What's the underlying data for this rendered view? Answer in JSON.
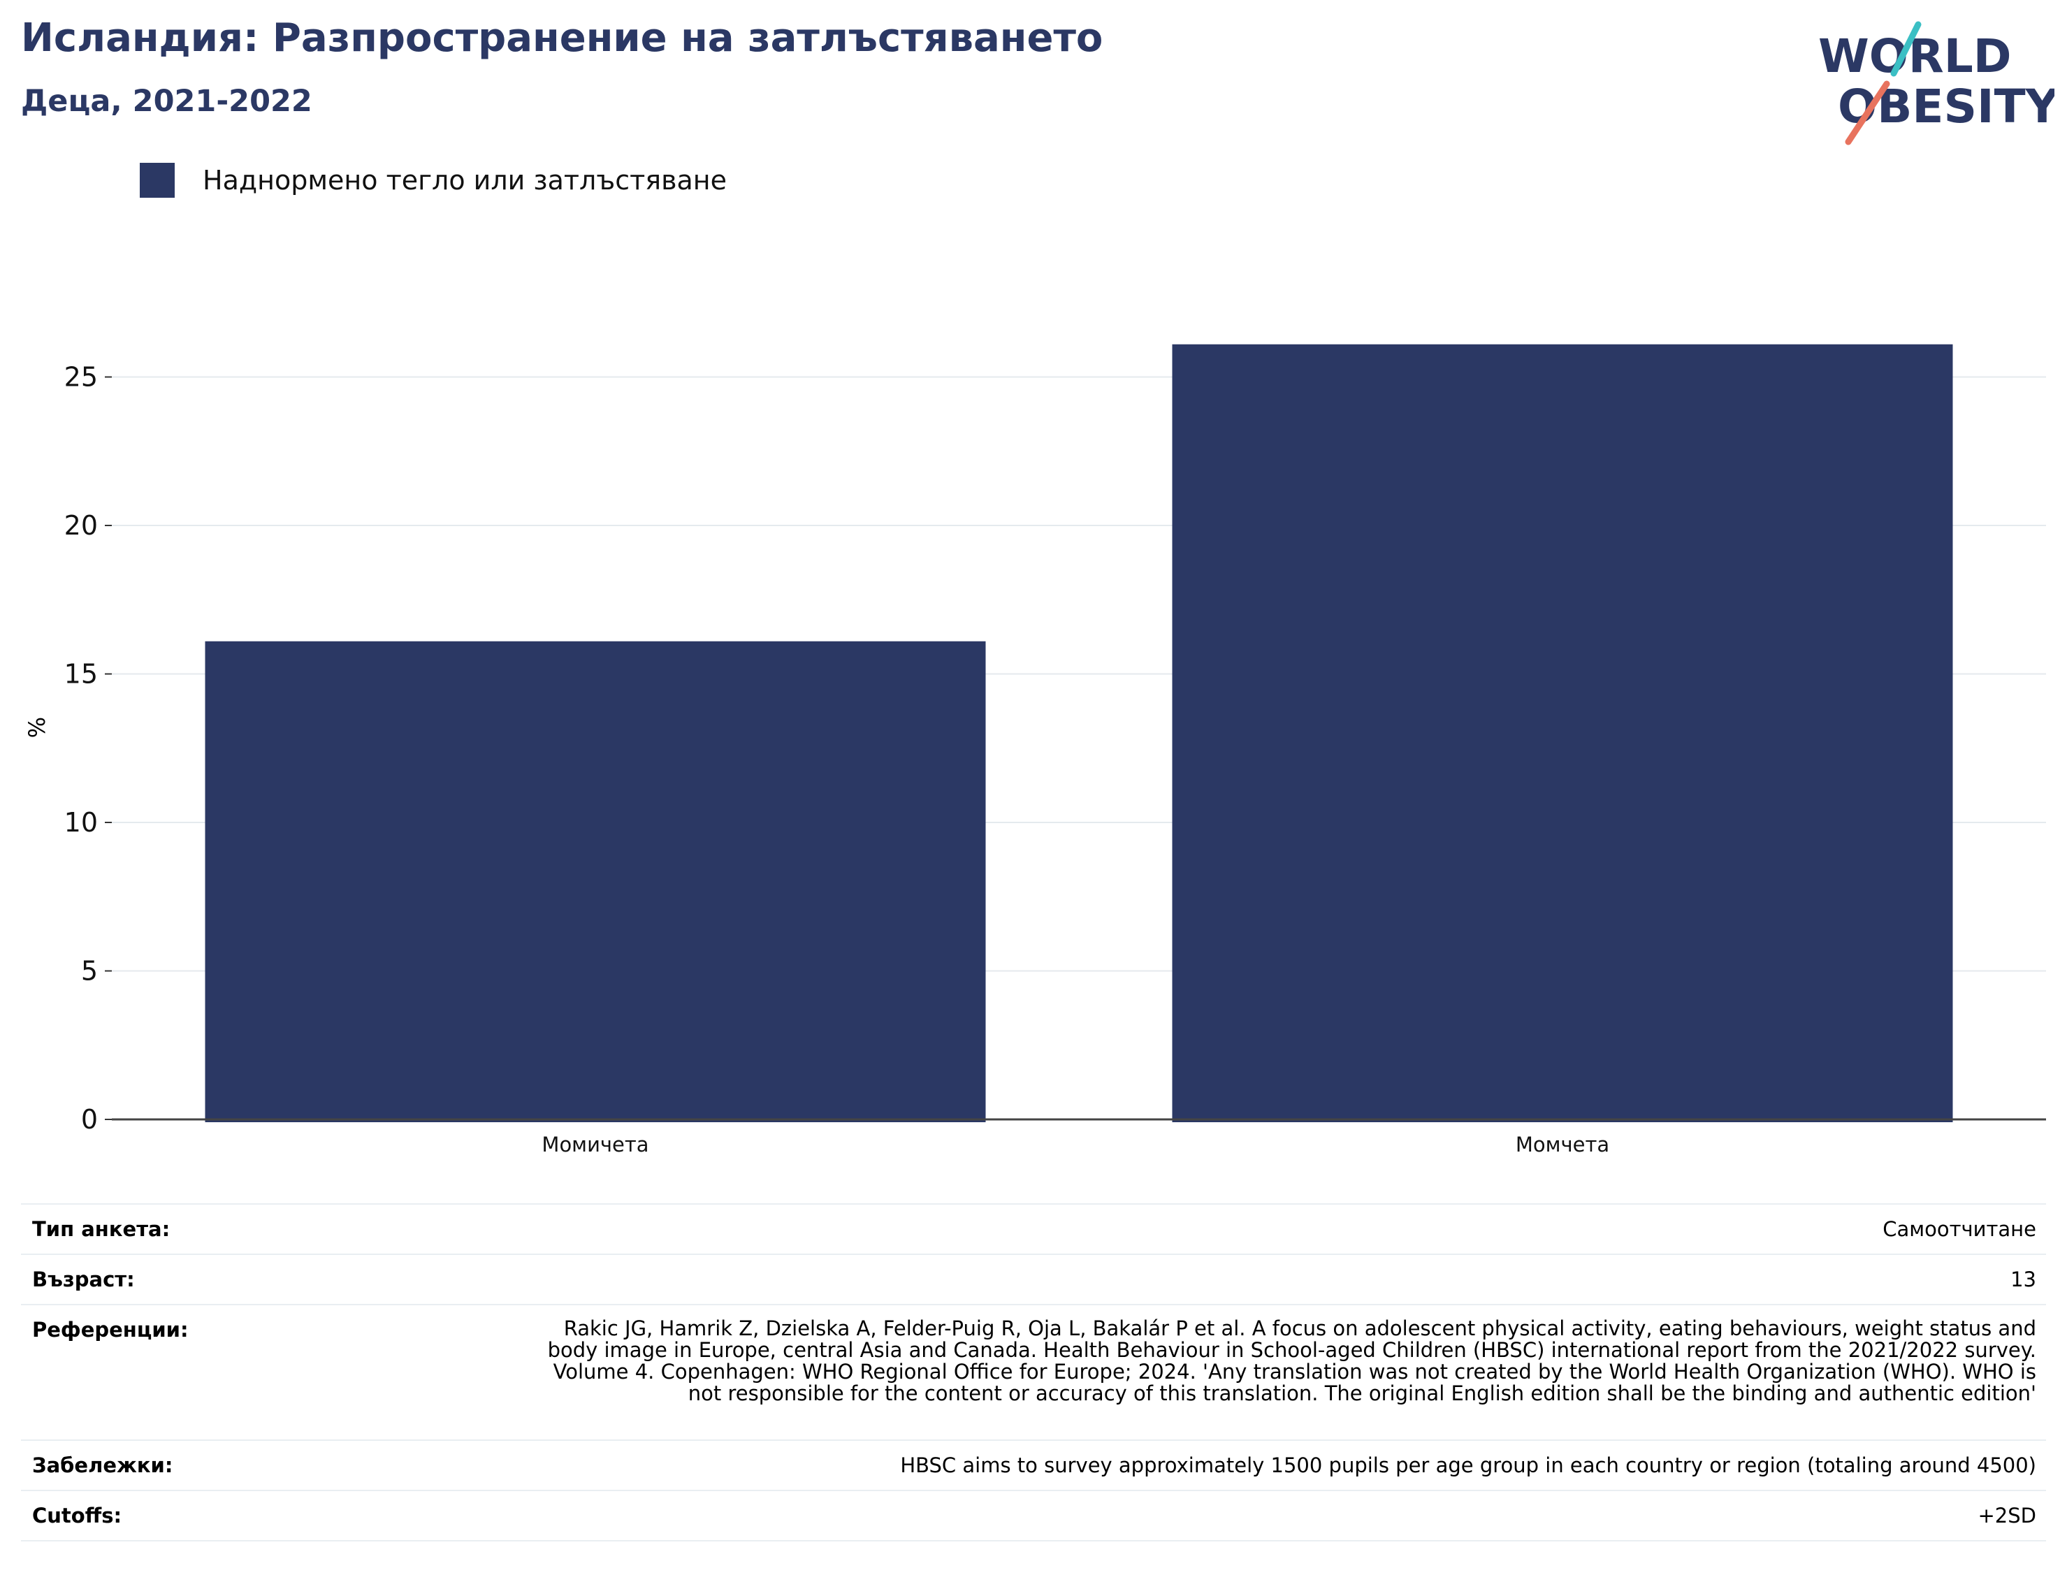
{
  "header": {
    "title": "Исландия: Разпространение на затлъстяването",
    "subtitle": "Деца, 2021-2022"
  },
  "logo": {
    "line1": "WORLD",
    "line2": "OBESITY",
    "colors": {
      "text": "#2b3864",
      "slash_top": "#3bbfc4",
      "slash_bottom": "#e8735e"
    }
  },
  "chart_data": {
    "type": "bar",
    "categories": [
      "Момичета",
      "Момчета"
    ],
    "series": [
      {
        "name": "Наднормено тегло или затлъстяване",
        "values": [
          16.1,
          26.1
        ],
        "color": "#2b3864"
      }
    ],
    "xlabel": "",
    "ylabel": "%",
    "ylim": [
      0,
      27.5
    ],
    "yticks": [
      0,
      5,
      10,
      15,
      20,
      25
    ],
    "grid": true,
    "legend_position": "top-left"
  },
  "meta": {
    "survey_type_label": "Тип анкета:",
    "survey_type_value": "Самоотчитане",
    "age_label": "Възраст:",
    "age_value": "13",
    "references_label": "Референции:",
    "references_value": "Rakic JG, Hamrik Z, Dzielska A, Felder-Puig R, Oja L, Bakalár P et al. A focus on adolescent physical activity, eating behaviours, weight status and body image in Europe, central Asia and Canada. Health Behaviour in School-aged Children (HBSC) international report from the 2021/2022 survey. Volume 4. Copenhagen: WHO Regional Office for Europe; 2024. 'Any translation was not created by the World Health Organization (WHO). WHO is not responsible for the content or accuracy of this translation. The original English edition shall be the binding and authentic edition'",
    "notes_label": "Забележки:",
    "notes_value": "HBSC aims to survey approximately 1500 pupils per age group in each country or region (totaling around 4500)",
    "cutoffs_label": "Cutoffs:",
    "cutoffs_value": "+2SD"
  }
}
